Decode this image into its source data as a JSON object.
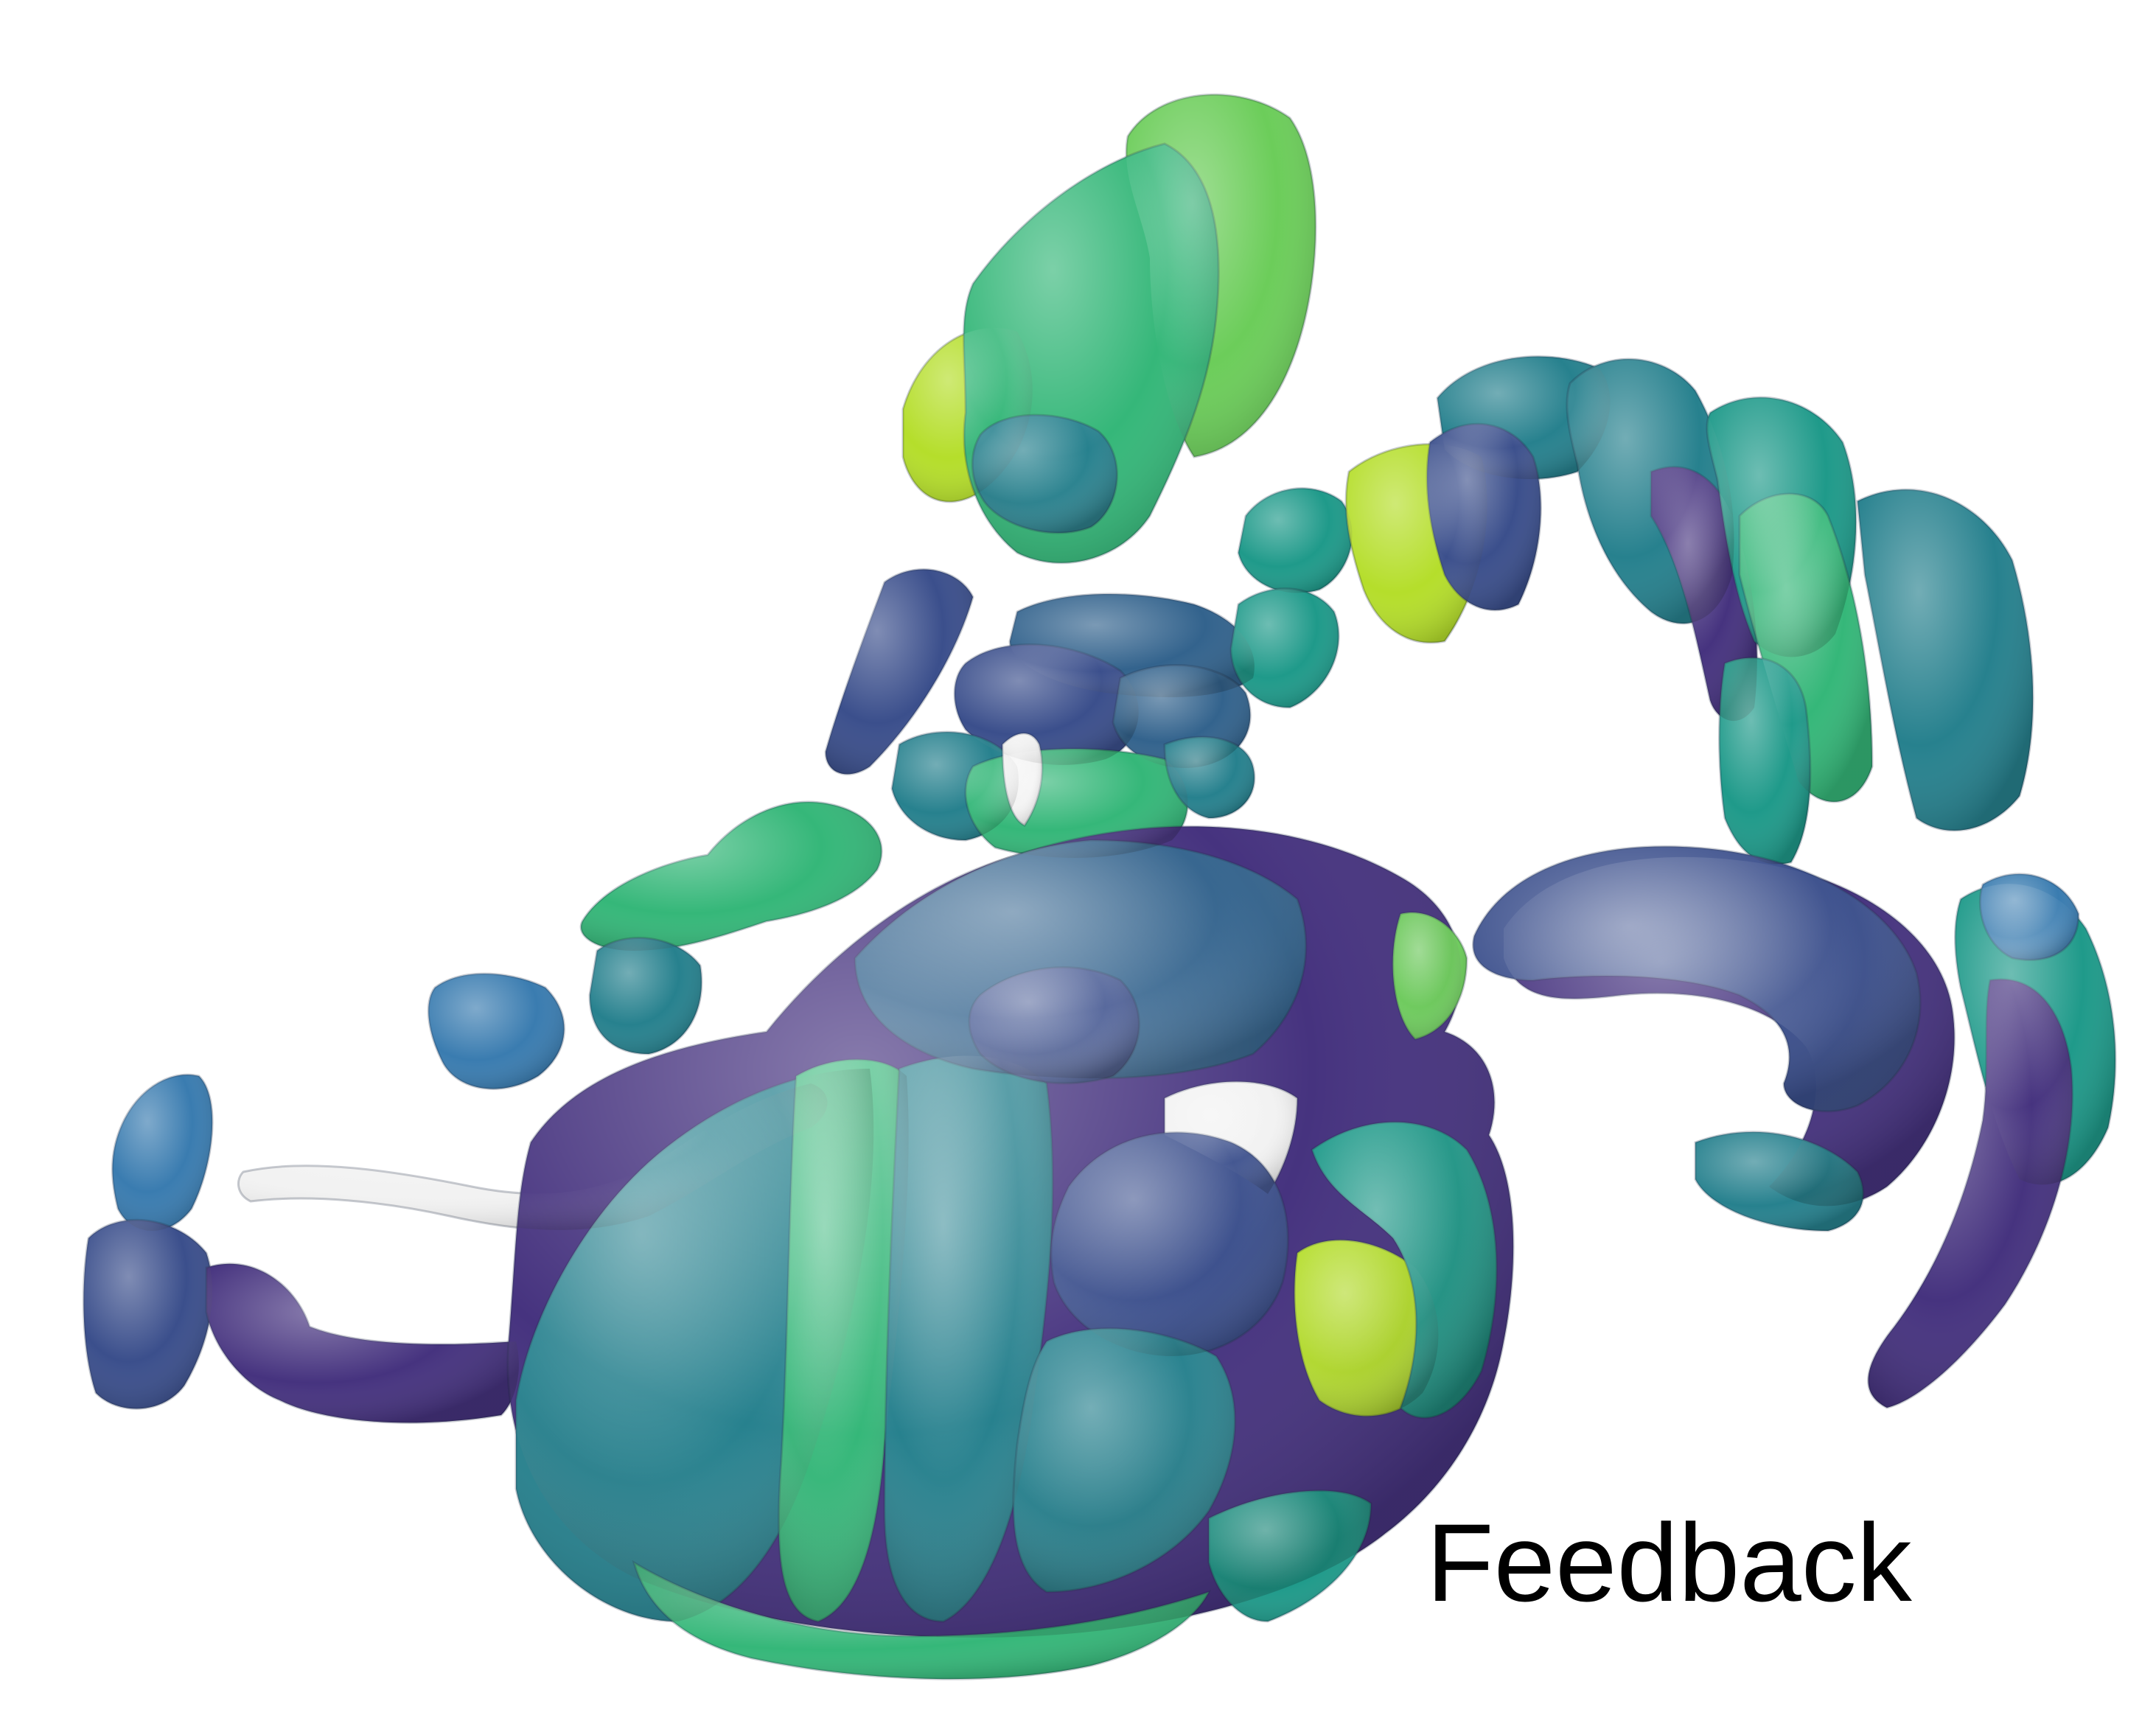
{
  "caption": "Feedback",
  "palette": {
    "purple": "#46337f",
    "indigo": "#3b4f8c",
    "blue": "#33638d",
    "steel": "#3a7cb0",
    "teal": "#27818e",
    "cyan": "#1f9a8a",
    "green": "#35b779",
    "lightgreen": "#6ccd5a",
    "lime": "#b5de2b",
    "white": "#f2f2f2"
  }
}
